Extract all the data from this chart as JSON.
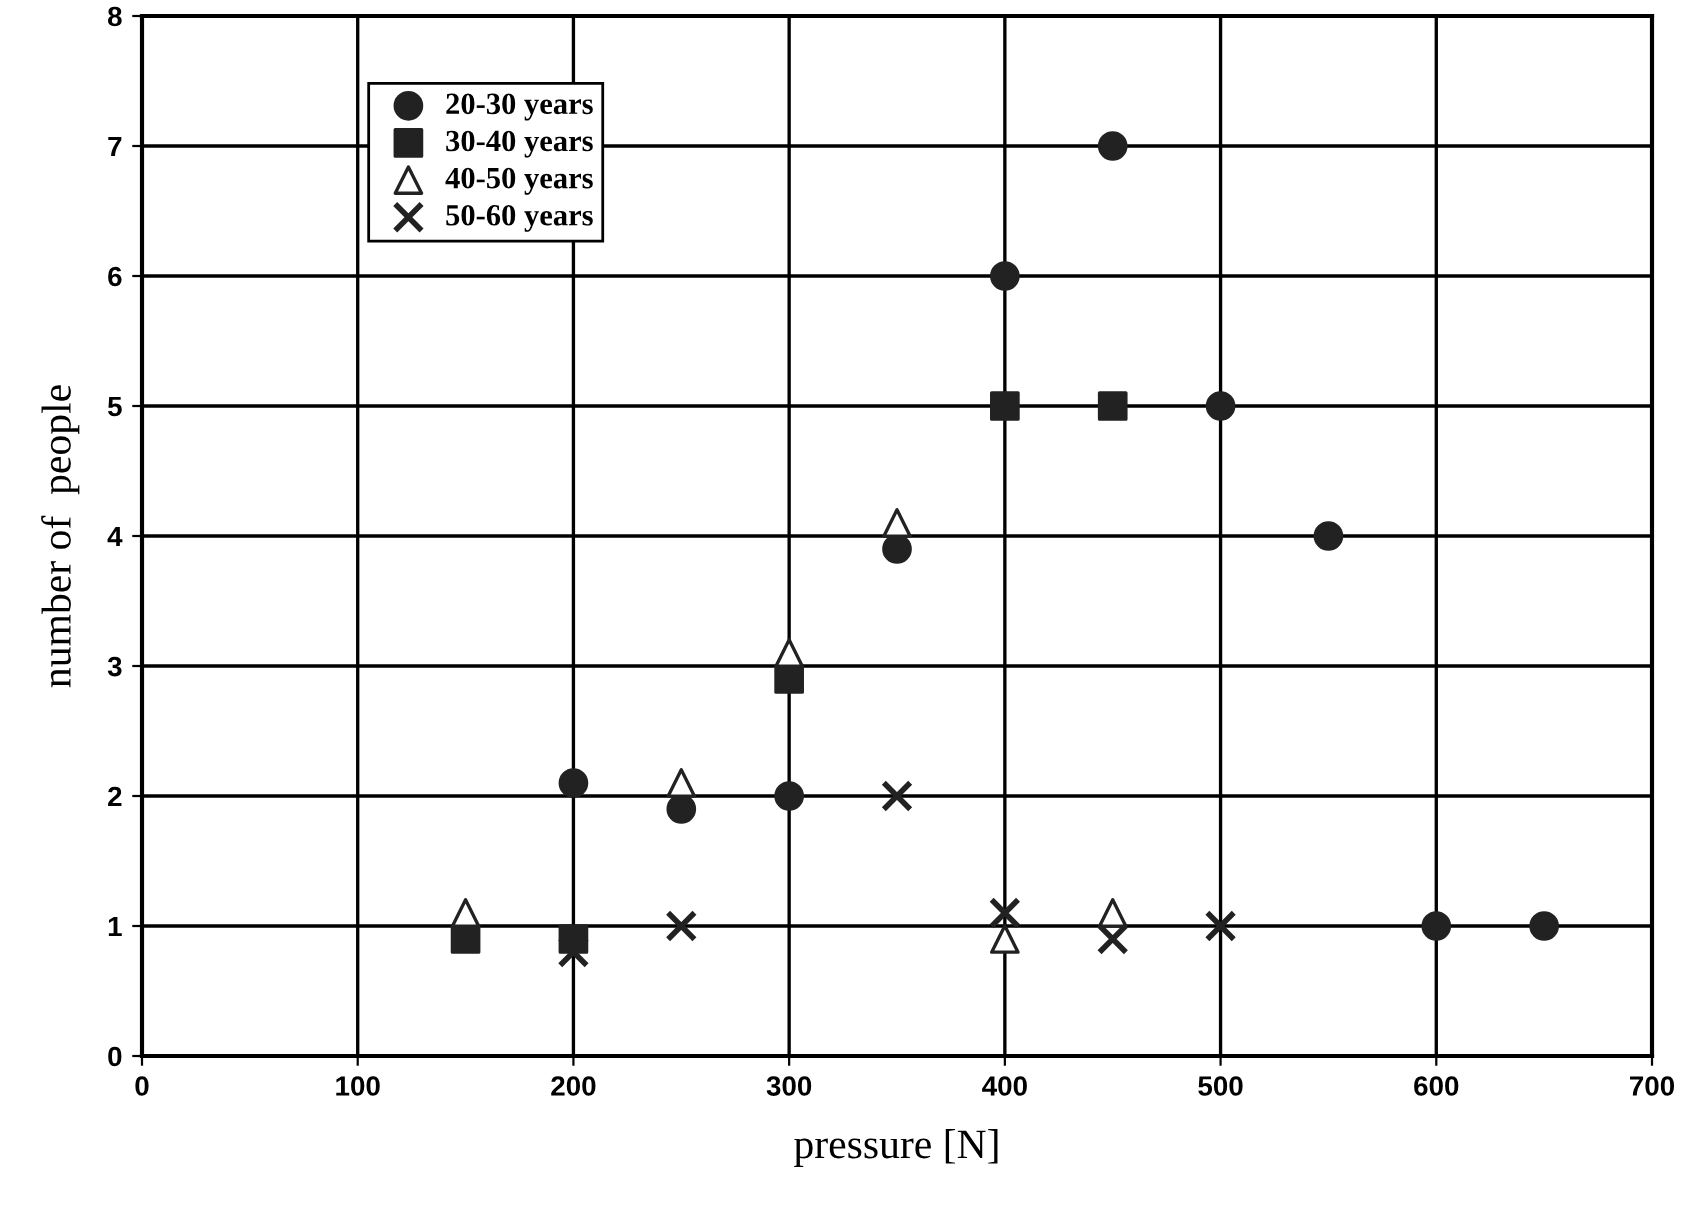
{
  "chart_data": {
    "type": "scatter",
    "xlabel": "pressure [N]",
    "ylabel": "number of  people",
    "xlim": [
      0,
      700
    ],
    "xticks": [
      0,
      100,
      200,
      300,
      400,
      500,
      600,
      700
    ],
    "ylim": [
      0,
      8
    ],
    "yticks": [
      0,
      1,
      2,
      3,
      4,
      5,
      6,
      7,
      8
    ],
    "grid": true,
    "legend": "top left",
    "series": [
      {
        "name": "20-30 years",
        "color": "#222222",
        "marker": "circle",
        "x": [
          200,
          250,
          300,
          350,
          400,
          450,
          500,
          550,
          600,
          650
        ],
        "values": [
          2.1,
          1.9,
          2,
          3.9,
          6,
          7,
          5,
          4,
          1,
          1
        ]
      },
      {
        "name": "30-40 years",
        "color": "#222222",
        "marker": "square",
        "x": [
          150,
          200,
          300,
          400,
          450
        ],
        "values": [
          0.9,
          0.9,
          2.9,
          5,
          5
        ]
      },
      {
        "name": "40-50 years",
        "color": "#222222",
        "marker": "triangle",
        "x": [
          150,
          250,
          300,
          350,
          400,
          450
        ],
        "values": [
          1.1,
          2.1,
          3.1,
          4.1,
          0.9,
          1.1
        ]
      },
      {
        "name": "50-60 years",
        "color": "#222222",
        "marker": "cross",
        "x": [
          200,
          250,
          350,
          400,
          450,
          500
        ],
        "values": [
          0.8,
          1,
          2,
          1.1,
          0.9,
          1
        ]
      }
    ]
  }
}
